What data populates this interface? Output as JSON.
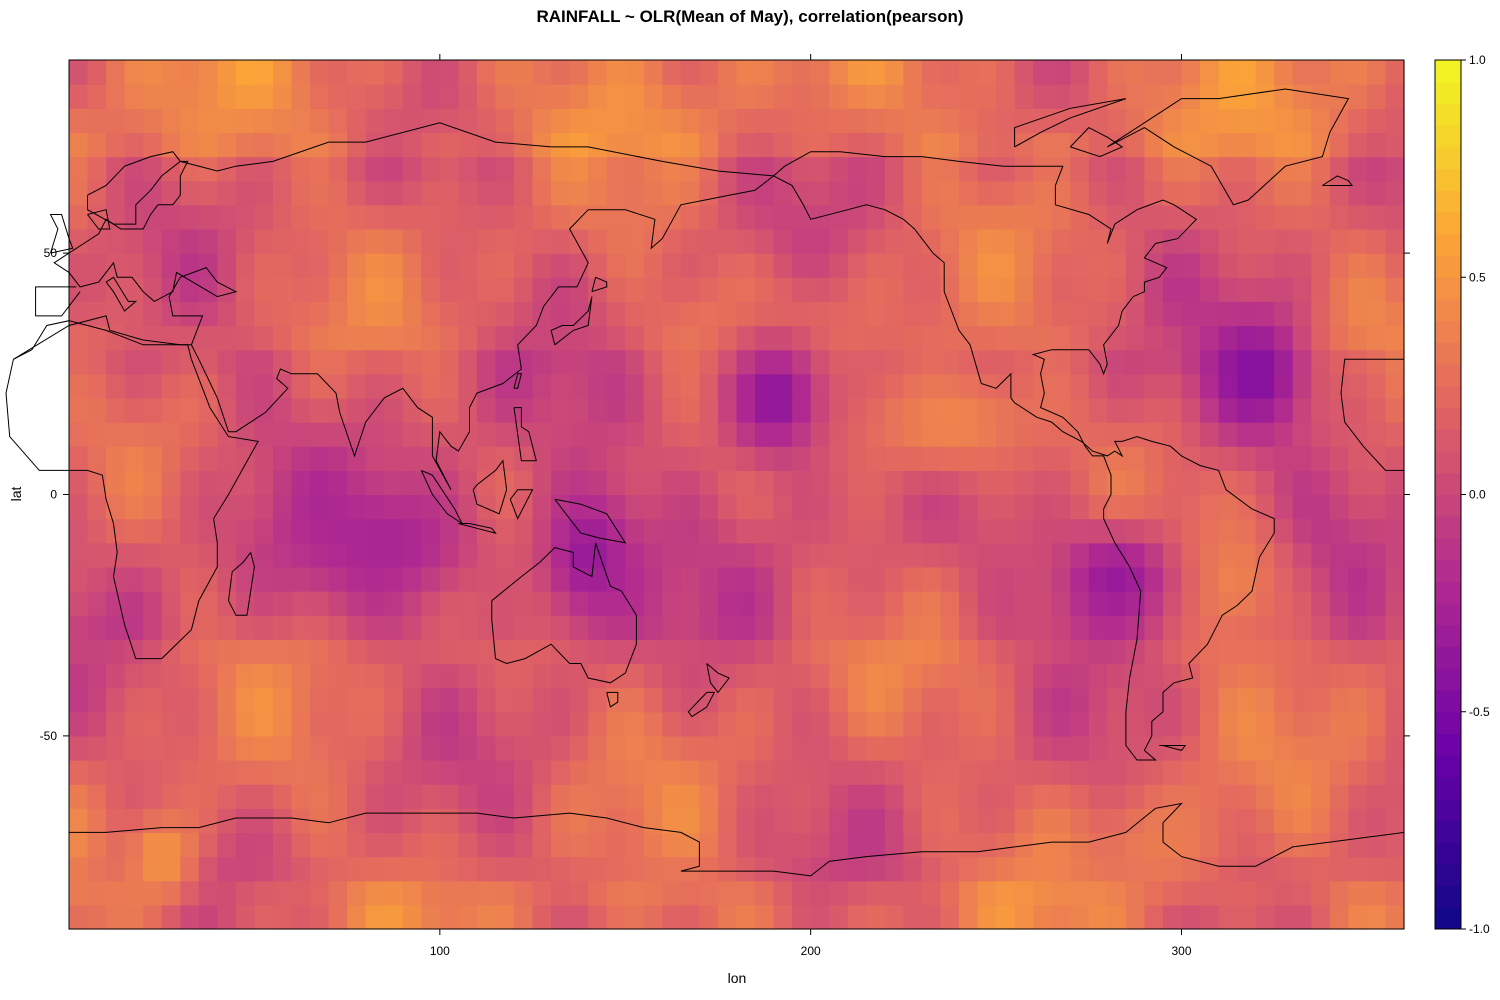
{
  "chart_data": {
    "type": "heatmap",
    "title": "RAINFALL ~ OLR(Mean of May), correlation(pearson)",
    "xlabel": "lon",
    "ylabel": "lat",
    "xlim": [
      0,
      360
    ],
    "ylim": [
      -90,
      90
    ],
    "x_ticks": [
      {
        "value": 100,
        "label": "100"
      },
      {
        "value": 200,
        "label": "200"
      },
      {
        "value": 300,
        "label": "300"
      }
    ],
    "y_ticks": [
      {
        "value": 50,
        "label": "50"
      },
      {
        "value": 0,
        "label": "0"
      },
      {
        "value": -50,
        "label": "-50"
      }
    ],
    "colorbar": {
      "min": -1.0,
      "max": 1.0,
      "ticks": [
        {
          "value": 1.0,
          "label": "1.0"
        },
        {
          "value": 0.5,
          "label": "0.5"
        },
        {
          "value": 0.0,
          "label": "0.0"
        },
        {
          "value": -0.5,
          "label": "-0.5"
        },
        {
          "value": -1.0,
          "label": "-1.0"
        }
      ],
      "colormap": "plasma",
      "colors": [
        "#0d0887",
        "#6a00a8",
        "#b12a90",
        "#e16462",
        "#fca636",
        "#f0f921"
      ]
    },
    "grid_resolution_deg": 5,
    "regions_description_values": [
      {
        "lon": [
          160,
          210
        ],
        "lat": [
          25,
          40
        ],
        "value": 0.35
      },
      {
        "lon": [
          210,
          265
        ],
        "lat": [
          5,
          25
        ],
        "value": 0.4
      },
      {
        "lon": [
          300,
          325
        ],
        "lat": [
          -30,
          -5
        ],
        "value": 0.4
      },
      {
        "lon": [
          310,
          330
        ],
        "lat": [
          15,
          35
        ],
        "value": -0.45
      },
      {
        "lon": [
          180,
          200
        ],
        "lat": [
          10,
          30
        ],
        "value": -0.4
      },
      {
        "lon": [
          130,
          150
        ],
        "lat": [
          -25,
          0
        ],
        "value": -0.35
      },
      {
        "lon": [
          270,
          295
        ],
        "lat": [
          -25,
          -10
        ],
        "value": -0.35
      },
      {
        "lon": [
          60,
          110
        ],
        "lat": [
          -20,
          0
        ],
        "value": -0.25
      },
      {
        "lon": [
          20,
          30
        ],
        "lat": [
          -80,
          -70
        ],
        "value": 0.5
      },
      {
        "lon": [
          280,
          310
        ],
        "lat": [
          -80,
          -65
        ],
        "value": 0.35
      }
    ]
  }
}
